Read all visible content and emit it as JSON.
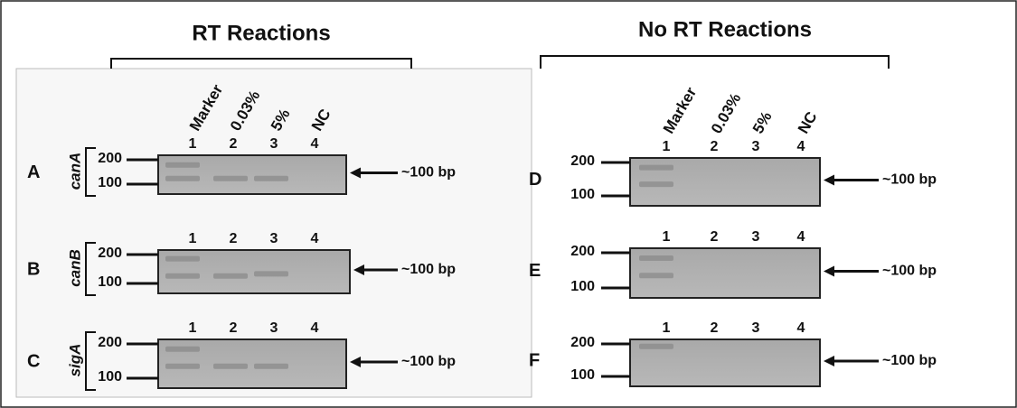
{
  "rt_group": {
    "title": "RT Reactions"
  },
  "no_rt_group": {
    "title": "No RT Reactions"
  },
  "panels": [
    {
      "letter": "A",
      "gene": "canA",
      "lane_labels": [
        "Marker",
        "0.03%",
        "5%",
        "NC"
      ],
      "lanes": [
        "1",
        "2",
        "3",
        "4"
      ],
      "markers": [
        "200",
        "100"
      ],
      "product": "~100 bp"
    },
    {
      "letter": "B",
      "gene": "canB",
      "lanes": [
        "1",
        "2",
        "3",
        "4"
      ],
      "markers": [
        "200",
        "100"
      ],
      "product": "~100 bp"
    },
    {
      "letter": "C",
      "gene": "sigA",
      "lanes": [
        "1",
        "2",
        "3",
        "4"
      ],
      "markers": [
        "200",
        "100"
      ],
      "product": "~100 bp"
    },
    {
      "letter": "D",
      "lane_labels": [
        "Marker",
        "0.03%",
        "5%",
        "NC"
      ],
      "lanes": [
        "1",
        "2",
        "3",
        "4"
      ],
      "markers": [
        "200",
        "100"
      ],
      "product": "~100 bp"
    },
    {
      "letter": "E",
      "lanes": [
        "1",
        "2",
        "3",
        "4"
      ],
      "markers": [
        "200",
        "100"
      ],
      "product": "~100 bp"
    },
    {
      "letter": "F",
      "lanes": [
        "1",
        "2",
        "3",
        "4"
      ],
      "markers": [
        "200",
        "100"
      ],
      "product": "~100 bp"
    }
  ]
}
